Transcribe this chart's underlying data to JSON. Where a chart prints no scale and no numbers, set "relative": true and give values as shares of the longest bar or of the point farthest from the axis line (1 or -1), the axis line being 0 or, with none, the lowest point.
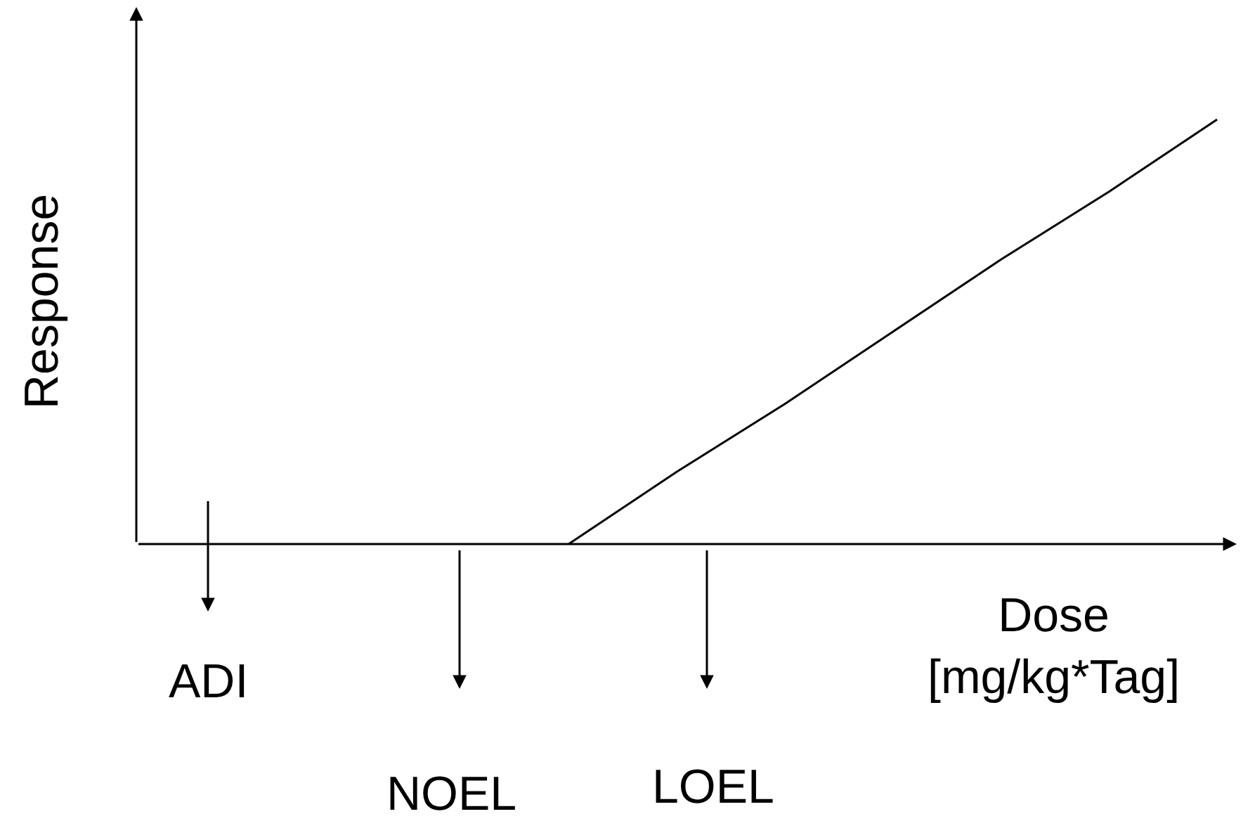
{
  "chart_data": {
    "type": "line",
    "relative": true,
    "xlabel": "Dose\n[mg/kg*Tag]",
    "ylabel": "Response",
    "categories": [
      null,
      null,
      null,
      null,
      null,
      null,
      null,
      null,
      null,
      null,
      null
    ],
    "series": [
      {
        "color": "#000000",
        "values": [
          null,
          null,
          null,
          null,
          0,
          0.17,
          0.33,
          0.5,
          0.67,
          0.83,
          1
        ]
      }
    ],
    "annotations": [
      "ADI",
      "NOEL",
      "LOEL"
    ],
    "legend": false,
    "marker": "none",
    "line_style": "solid"
  }
}
